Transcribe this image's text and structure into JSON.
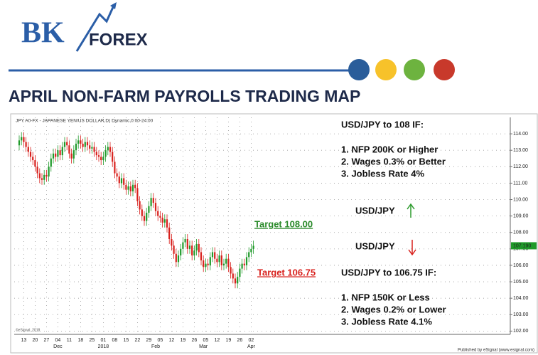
{
  "header": {
    "logo_bk": "BK",
    "logo_forex": "FOREX",
    "title": "APRIL NON-FARM PAYROLLS TRADING MAP"
  },
  "chart_data": {
    "type": "candlestick",
    "title": "JPY A0-FX - JAPANESE YEN/US DOLLAR,D) Dynamic,0:00-24:00",
    "categories": [
      null,
      null,
      "13",
      null,
      null,
      null,
      null,
      "20",
      null,
      null,
      null,
      null,
      "27",
      null,
      null,
      null,
      null,
      "04",
      null,
      null,
      null,
      null,
      "11",
      null,
      null,
      null,
      null,
      "18",
      null,
      null,
      null,
      null,
      "25",
      null,
      null,
      null,
      null,
      "01",
      null,
      null,
      null,
      null,
      "08",
      null,
      null,
      null,
      null,
      "15",
      null,
      null,
      null,
      null,
      "22",
      null,
      null,
      null,
      null,
      "29",
      null,
      null,
      null,
      null,
      "05",
      null,
      null,
      null,
      null,
      "12",
      null,
      null,
      null,
      null,
      "19",
      null,
      null,
      null,
      null,
      "26",
      null,
      null,
      null,
      null,
      "05",
      null,
      null,
      null,
      null,
      "12",
      null,
      null,
      null,
      null,
      "19",
      null,
      null,
      null,
      null,
      "26",
      null,
      null,
      null,
      null,
      "02",
      null
    ],
    "category_groups": [
      null,
      null,
      null,
      null,
      null,
      null,
      null,
      null,
      null,
      null,
      null,
      null,
      null,
      null,
      null,
      null,
      null,
      "Dec",
      null,
      null,
      null,
      null,
      null,
      null,
      null,
      null,
      null,
      null,
      null,
      null,
      null,
      null,
      null,
      null,
      null,
      null,
      null,
      "2018",
      null,
      null,
      null,
      null,
      null,
      null,
      null,
      null,
      null,
      null,
      null,
      null,
      null,
      null,
      null,
      null,
      null,
      null,
      null,
      null,
      null,
      null,
      "Feb",
      null,
      null,
      null,
      null,
      null,
      null,
      null,
      null,
      null,
      null,
      null,
      null,
      null,
      null,
      null,
      null,
      null,
      null,
      null,
      null,
      "Mar",
      null,
      null,
      null,
      null,
      null,
      null,
      null,
      null,
      null,
      null,
      null,
      null,
      null,
      null,
      null,
      null,
      null,
      null,
      null,
      null,
      "Apr",
      null
    ],
    "open": [
      113.3,
      113.6,
      113.8,
      113.5,
      113.2,
      112.9,
      112.6,
      112.4,
      112.0,
      111.6,
      111.3,
      111.2,
      111.5,
      111.4,
      112.0,
      112.5,
      112.8,
      112.6,
      113.0,
      112.7,
      113.2,
      113.5,
      113.3,
      112.8,
      112.5,
      113.0,
      113.4,
      113.6,
      113.4,
      113.2,
      113.5,
      113.3,
      113.1,
      113.2,
      112.9,
      112.7,
      112.6,
      112.4,
      112.6,
      113.0,
      113.2,
      112.9,
      112.3,
      111.6,
      111.4,
      111.0,
      111.3,
      110.9,
      110.6,
      110.8,
      110.5,
      110.9,
      110.7,
      109.9,
      109.4,
      109.0,
      108.7,
      109.2,
      109.6,
      110.1,
      109.8,
      109.3,
      109.0,
      108.9,
      108.6,
      108.8,
      108.3,
      107.6,
      107.2,
      106.7,
      106.2,
      106.6,
      107.0,
      107.4,
      107.6,
      107.0,
      107.2,
      106.6,
      106.9,
      107.3,
      106.8,
      106.3,
      105.9,
      106.1,
      106.0,
      106.5,
      106.8,
      106.4,
      106.2,
      106.6,
      106.0,
      106.1,
      106.4,
      105.9,
      105.5,
      105.2,
      104.9,
      105.3,
      105.8,
      106.1,
      106.0,
      106.5,
      106.8,
      107.0
    ],
    "high": [
      113.9,
      114.1,
      114.1,
      113.8,
      113.5,
      113.2,
      112.9,
      112.7,
      112.3,
      111.9,
      111.6,
      111.8,
      111.8,
      112.3,
      112.8,
      113.1,
      113.1,
      113.3,
      113.3,
      113.5,
      113.8,
      113.8,
      113.6,
      113.1,
      113.3,
      113.7,
      113.9,
      113.9,
      113.7,
      113.8,
      113.8,
      113.6,
      113.5,
      113.5,
      113.2,
      113.0,
      112.9,
      112.9,
      113.3,
      113.5,
      113.5,
      113.2,
      112.6,
      111.9,
      111.7,
      111.6,
      111.6,
      111.2,
      111.1,
      111.1,
      111.2,
      111.2,
      111.0,
      110.2,
      109.7,
      109.3,
      109.5,
      109.9,
      110.4,
      110.4,
      110.1,
      109.6,
      109.3,
      109.2,
      109.1,
      109.1,
      108.6,
      107.9,
      107.5,
      107.0,
      106.9,
      107.3,
      107.7,
      107.9,
      107.9,
      107.5,
      107.5,
      107.2,
      107.6,
      107.6,
      107.1,
      106.6,
      106.4,
      106.4,
      106.8,
      107.1,
      107.1,
      106.7,
      106.9,
      106.9,
      106.4,
      106.7,
      106.7,
      106.2,
      105.8,
      105.5,
      105.6,
      106.1,
      106.4,
      106.4,
      106.8,
      107.1,
      107.3,
      107.5
    ],
    "low": [
      113.0,
      113.3,
      113.2,
      112.9,
      112.6,
      112.3,
      112.1,
      111.7,
      111.3,
      111.0,
      110.9,
      110.9,
      111.1,
      111.1,
      111.7,
      112.2,
      112.3,
      112.3,
      112.4,
      112.4,
      112.9,
      113.0,
      112.5,
      112.2,
      112.2,
      112.7,
      113.1,
      113.1,
      112.9,
      112.9,
      113.0,
      112.8,
      112.8,
      112.6,
      112.4,
      112.3,
      112.1,
      112.1,
      112.3,
      112.7,
      112.6,
      112.0,
      111.3,
      111.1,
      110.7,
      110.7,
      110.6,
      110.3,
      110.3,
      110.2,
      110.2,
      110.4,
      109.6,
      109.1,
      108.7,
      108.4,
      108.4,
      108.9,
      109.3,
      109.5,
      109.0,
      108.7,
      108.6,
      108.3,
      108.3,
      108.0,
      107.3,
      106.9,
      106.4,
      105.9,
      105.9,
      106.3,
      106.7,
      107.1,
      106.7,
      106.7,
      106.3,
      106.3,
      106.6,
      106.5,
      106.0,
      105.6,
      105.6,
      105.7,
      105.7,
      106.2,
      106.1,
      105.9,
      105.9,
      105.7,
      105.7,
      105.8,
      105.6,
      105.2,
      104.9,
      104.6,
      104.6,
      105.0,
      105.5,
      105.7,
      105.7,
      106.2,
      106.5,
      106.7
    ],
    "close": [
      113.6,
      113.8,
      113.5,
      113.2,
      112.9,
      112.6,
      112.4,
      112.0,
      111.6,
      111.3,
      111.2,
      111.5,
      111.4,
      112.0,
      112.5,
      112.8,
      112.6,
      113.0,
      112.7,
      113.2,
      113.5,
      113.3,
      112.8,
      112.5,
      113.0,
      113.4,
      113.6,
      113.4,
      113.2,
      113.5,
      113.3,
      113.1,
      113.2,
      112.9,
      112.7,
      112.6,
      112.4,
      112.6,
      113.0,
      113.2,
      112.9,
      112.3,
      111.6,
      111.4,
      111.0,
      111.3,
      110.9,
      110.6,
      110.8,
      110.5,
      110.9,
      110.7,
      109.9,
      109.4,
      109.0,
      108.7,
      109.2,
      109.6,
      110.1,
      109.8,
      109.3,
      109.0,
      108.9,
      108.6,
      108.8,
      108.3,
      107.6,
      107.2,
      106.7,
      106.2,
      106.6,
      107.0,
      107.4,
      107.6,
      107.0,
      107.2,
      106.6,
      106.9,
      107.3,
      106.8,
      106.3,
      105.9,
      106.1,
      106.0,
      106.5,
      106.8,
      106.4,
      106.2,
      106.6,
      106.0,
      106.1,
      106.4,
      105.9,
      105.5,
      105.2,
      104.9,
      105.3,
      105.8,
      106.1,
      106.0,
      106.5,
      106.8,
      107.0,
      107.19
    ],
    "up_color": "#1f9a2a",
    "down_color": "#d8201c",
    "ylim": [
      101.8,
      115
    ],
    "yticks": [
      {
        "value": 102,
        "label": "102.00"
      },
      {
        "value": 103,
        "label": "103.00"
      },
      {
        "value": 104,
        "label": "104.00"
      },
      {
        "value": 105,
        "label": "105.00"
      },
      {
        "value": 106,
        "label": "106.00"
      },
      {
        "value": 107,
        "label": "107.00"
      },
      {
        "value": 108,
        "label": "108.00"
      },
      {
        "value": 109,
        "label": "109.00"
      },
      {
        "value": 110,
        "label": "110.00"
      },
      {
        "value": 111,
        "label": "111.00"
      },
      {
        "value": 112,
        "label": "112.00"
      },
      {
        "value": 113,
        "label": "113.00"
      },
      {
        "value": 114,
        "label": "114.00"
      }
    ],
    "grid": true,
    "last_price": {
      "value": 107.19,
      "label": "107.190",
      "color": "#1f9a2a"
    },
    "annotations": [
      {
        "text": "Target 108.00",
        "color": "#2a8a2a"
      },
      {
        "text": "Target 106.75",
        "color": "#d8201c"
      }
    ],
    "source": "©eSignal, 2018",
    "publisher": "Published by eSignal (www.esignal.com)"
  },
  "scenarios": [
    {
      "heading": "USD/JPY to 108 IF:",
      "items": [
        "1. NFP 200K or Higher",
        "2. Wages 0.3% or Better",
        "3. Jobless Rate 4%"
      ]
    },
    {
      "heading": "USD/JPY to 106.75 IF:",
      "items": [
        "1. NFP 150K or Less",
        "2. Wages 0.2% or Lower",
        "3. Jobless Rate 4.1%"
      ]
    }
  ],
  "direction": [
    "USD/JPY",
    "USD/JPY"
  ]
}
